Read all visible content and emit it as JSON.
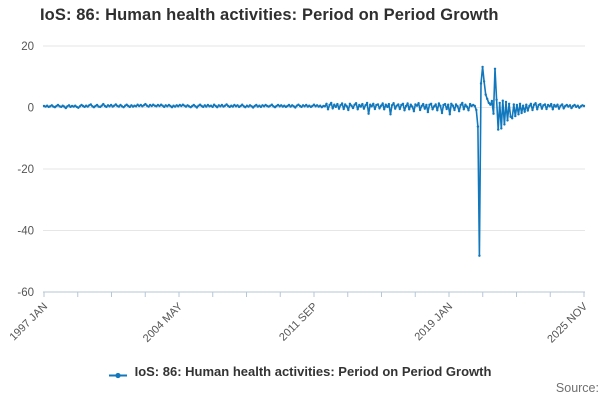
{
  "title": "IoS: 86: Human health activities: Period on Period Growth",
  "legend": {
    "label": "IoS: 86: Human health activities: Period on Period Growth"
  },
  "source": {
    "label": "Source:"
  },
  "colors": {
    "line": "#1178bd",
    "grid": "#e6e6e6",
    "axis": "#b6c6d6",
    "tick_text": "#555555",
    "title_text": "#2f2f2f",
    "legend_text": "#333333",
    "source_text": "#707070"
  },
  "chart_data": {
    "type": "line",
    "title": "IoS: 86: Human health activities: Period on Period Growth",
    "xlabel": "",
    "ylabel": "",
    "frequency": "monthly",
    "x_range": [
      "1997 JAN",
      "2025 NOV"
    ],
    "ylim": [
      -60,
      20
    ],
    "y_ticks": [
      20,
      0,
      -20,
      -40,
      -60
    ],
    "x_tick_count": 17,
    "x_label_indices": [
      0,
      4,
      8,
      12,
      16
    ],
    "x_tick_labels": [
      "1997 JAN",
      "2004 MAY",
      "2011 SEP",
      "2019 JAN",
      "2025 NOV"
    ],
    "grid": true,
    "legend_position": "bottom",
    "marker": "circle",
    "series_name": "IoS: 86: Human health activities: Period on Period Growth",
    "values": [
      0.5,
      0.3,
      0.6,
      0.2,
      0.4,
      0.7,
      0.3,
      0.1,
      0.5,
      0.8,
      0.4,
      0.2,
      0.6,
      0.3,
      -0.2,
      0.4,
      0.7,
      0.2,
      0.5,
      0.3,
      0.6,
      0.2,
      -0.1,
      0.4,
      0.8,
      0.5,
      0.2,
      0.6,
      0.3,
      0.7,
      1.0,
      0.4,
      0.1,
      0.5,
      0.8,
      0.3,
      0.2,
      0.6,
      1.1,
      0.5,
      0.2,
      0.7,
      0.4,
      0.8,
      0.3,
      0.6,
      1.0,
      0.5,
      0.3,
      0.8,
      0.4,
      0.1,
      0.6,
      0.9,
      0.5,
      0.2,
      0.7,
      0.3,
      0.6,
      0.4,
      0.9,
      0.5,
      0.8,
      0.4,
      0.7,
      1.1,
      0.6,
      0.3,
      0.8,
      0.5,
      0.9,
      0.6,
      0.4,
      0.8,
      0.5,
      0.9,
      0.6,
      0.2,
      0.7,
      0.4,
      0.8,
      0.5,
      0.1,
      0.6,
      0.3,
      0.7,
      0.4,
      0.8,
      0.5,
      0.9,
      0.6,
      0.3,
      0.7,
      0.4,
      0.1,
      0.5,
      0.8,
      0.4,
      0.0,
      0.6,
      0.9,
      0.5,
      0.2,
      0.7,
      0.3,
      0.8,
      0.4,
      0.6,
      0.2,
      0.9,
      0.5,
      0.1,
      0.7,
      0.4,
      0.8,
      0.3,
      0.6,
      1.0,
      0.5,
      0.2,
      0.6,
      0.3,
      0.8,
      0.4,
      0.7,
      0.2,
      0.5,
      0.9,
      0.4,
      0.1,
      0.6,
      0.3,
      0.7,
      0.4,
      0.0,
      0.5,
      0.8,
      0.3,
      0.6,
      0.2,
      0.7,
      0.4,
      0.8,
      0.5,
      0.3,
      0.6,
      0.9,
      0.4,
      0.1,
      0.5,
      0.8,
      0.4,
      0.7,
      0.3,
      0.6,
      0.2,
      0.5,
      0.8,
      0.3,
      0.7,
      0.4,
      0.0,
      0.6,
      0.9,
      0.5,
      0.2,
      0.7,
      0.4,
      0.8,
      0.3,
      0.6,
      0.2,
      0.5,
      0.9,
      0.4,
      0.7,
      0.3,
      0.6,
      0.1,
      0.5,
      0.4,
      1.2,
      -0.6,
      0.8,
      1.5,
      -0.3,
      0.9,
      0.2,
      1.1,
      -0.4,
      0.7,
      1.3,
      -0.5,
      1.0,
      0.4,
      -0.8,
      1.2,
      0.6,
      -0.2,
      0.9,
      1.4,
      -0.6,
      0.8,
      0.3,
      1.1,
      -0.4,
      0.7,
      1.5,
      -2.0,
      0.9,
      0.4,
      1.2,
      -0.5,
      0.8,
      1.0,
      -0.3,
      0.6,
      1.3,
      -0.6,
      0.9,
      0.2,
      1.1,
      -2.2,
      0.7,
      1.4,
      -0.4,
      0.6,
      1.0,
      -0.5,
      0.8,
      1.2,
      -0.9,
      0.5,
      1.3,
      -0.6,
      0.9,
      0.3,
      -1.2,
      1.0,
      0.6,
      1.4,
      -0.8,
      0.5,
      1.1,
      -0.4,
      0.8,
      -1.5,
      0.9,
      1.2,
      -0.6,
      0.4,
      1.0,
      -0.9,
      1.3,
      0.5,
      -1.8,
      0.8,
      1.1,
      -0.5,
      0.9,
      -2.2,
      1.2,
      0.6,
      -0.8,
      1.0,
      0.4,
      -1.2,
      0.8,
      1.5,
      -0.6,
      0.9,
      0.3,
      -0.9,
      1.1,
      0.5,
      0.8,
      0.5,
      -0.8,
      -6.2,
      -48.2,
      7.8,
      13.2,
      8.5,
      4.2,
      2.8,
      1.5,
      0.9,
      2.1,
      -2.0,
      12.6,
      2.5,
      -7.2,
      1.5,
      -6.8,
      2.2,
      -5.5,
      1.8,
      -4.2,
      1.2,
      -3.0,
      -3.5,
      1.0,
      -2.8,
      0.8,
      -2.2,
      1.2,
      -1.8,
      0.6,
      -1.4,
      0.9,
      -1.0,
      0.5,
      1.2,
      -0.8,
      0.9,
      1.4,
      -0.6,
      0.8,
      1.1,
      -0.4,
      0.7,
      1.0,
      -0.5,
      0.8,
      0.4,
      1.1,
      -0.6,
      0.8,
      0.3,
      0.9,
      -0.4,
      0.6,
      1.0,
      -0.3,
      0.5,
      0.8,
      0.3,
      0.7,
      -0.2,
      0.5,
      0.8,
      0.2,
      0.6,
      -0.1,
      0.4,
      0.7,
      0.5
    ]
  }
}
